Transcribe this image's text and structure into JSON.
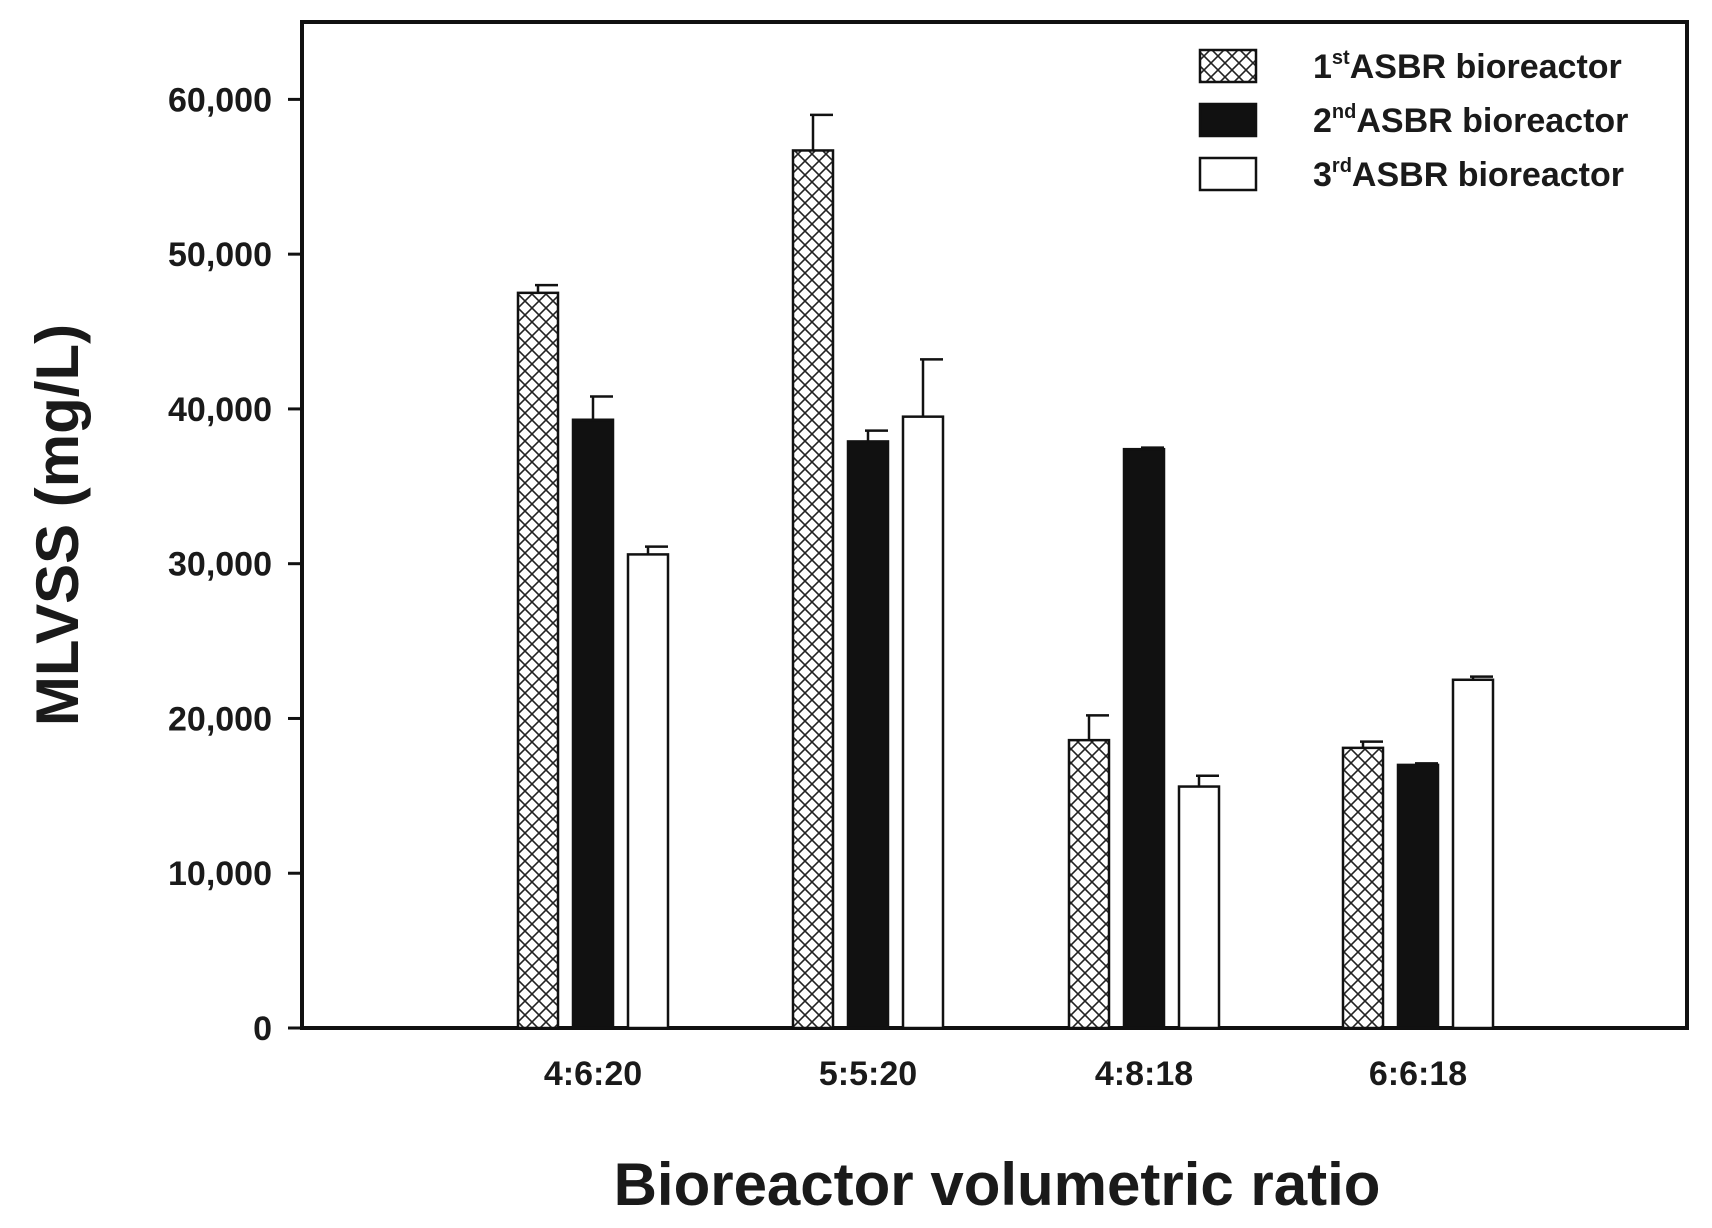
{
  "chart_data": {
    "type": "bar",
    "title": "",
    "xlabel": "Bioreactor volumetric ratio",
    "ylabel": "MLVSS (mg/L)",
    "ylim": [
      0,
      65000
    ],
    "yticks": [
      0,
      10000,
      20000,
      30000,
      40000,
      50000,
      60000
    ],
    "ytick_labels": [
      "0",
      "10,000",
      "20,000",
      "30,000",
      "40,000",
      "50,000",
      "60,000"
    ],
    "categories": [
      "4:6:20",
      "5:5:20",
      "4:8:18",
      "6:6:18"
    ],
    "series": [
      {
        "name": "1st ASBR bioreactor",
        "name_num": "1",
        "name_sup": "st",
        "name_rest": "ASBR bioreactor",
        "fill": "crosshatch",
        "values": [
          47500,
          56700,
          18600,
          18100
        ],
        "errors": [
          500,
          2300,
          1600,
          400
        ]
      },
      {
        "name": "2nd ASBR bioreactor",
        "name_num": "2",
        "name_sup": "nd",
        "name_rest": "ASBR bioreactor",
        "fill": "#111111",
        "values": [
          39300,
          37900,
          37400,
          17000
        ],
        "errors": [
          1500,
          700,
          100,
          100
        ]
      },
      {
        "name": "3rd ASBR bioreactor",
        "name_num": "3",
        "name_sup": "rd",
        "name_rest": "ASBR bioreactor",
        "fill": "#ffffff",
        "values": [
          30600,
          39500,
          15600,
          22500
        ],
        "errors": [
          500,
          3700,
          700,
          200
        ]
      }
    ],
    "legend_position": "top-right",
    "grid": false
  }
}
